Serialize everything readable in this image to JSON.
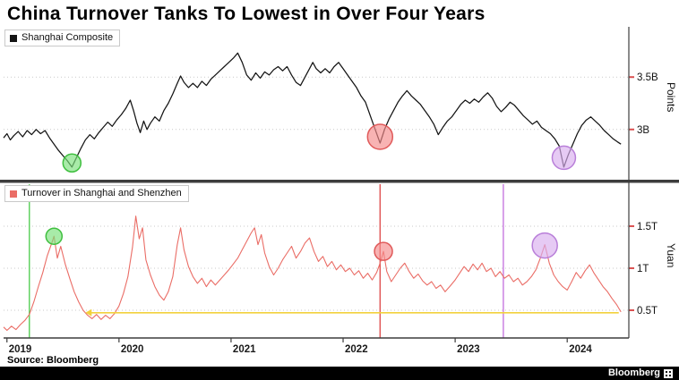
{
  "title": "China Turnover Tanks To Lowest in Over Four Years",
  "footer": {
    "source": "Source: Bloomberg",
    "brand": "Bloomberg"
  },
  "colors": {
    "grid": "#c9c9c9",
    "axis": "#3d3d3d",
    "divider": "#3d3d3d",
    "tick": "#d94f4f",
    "green": "#3fbf3f",
    "red": "#e05252",
    "purple": "#b97fd9",
    "yellow": "#f2d13d"
  },
  "x_axis": {
    "xlim": [
      2018.97,
      2024.55
    ],
    "ticks": [
      {
        "value": 2019,
        "label": "2019"
      },
      {
        "value": 2020,
        "label": "2020"
      },
      {
        "value": 2021,
        "label": "2021"
      },
      {
        "value": 2022,
        "label": "2022"
      },
      {
        "value": 2023,
        "label": "2023"
      },
      {
        "value": 2024,
        "label": "2024"
      }
    ]
  },
  "chart_data": [
    {
      "type": "line",
      "name": "shanghai-composite",
      "legend": "Shanghai Composite",
      "line_color": "#141414",
      "ylabel": "Points",
      "ylim": [
        2.52,
        3.98
      ],
      "yticks": [
        {
          "value": 3.5,
          "label": "3.5B"
        },
        {
          "value": 3.0,
          "label": "3B"
        }
      ],
      "markers": [
        {
          "name": "green-event-marker-top",
          "x": 2019.58,
          "y": 2.68,
          "r": 10,
          "fill": "#79e079",
          "stroke": "#3fbf3f"
        },
        {
          "name": "red-event-marker-top",
          "x": 2022.33,
          "y": 2.93,
          "r": 14,
          "fill": "#f58a8a",
          "stroke": "#e05a5a"
        },
        {
          "name": "purple-event-marker-top",
          "x": 2023.97,
          "y": 2.73,
          "r": 13,
          "fill": "#d9aeee",
          "stroke": "#b97fd9"
        }
      ],
      "points": [
        [
          2018.97,
          2.92
        ],
        [
          2019.0,
          2.96
        ],
        [
          2019.03,
          2.9
        ],
        [
          2019.06,
          2.94
        ],
        [
          2019.1,
          2.98
        ],
        [
          2019.14,
          2.93
        ],
        [
          2019.18,
          2.99
        ],
        [
          2019.22,
          2.95
        ],
        [
          2019.26,
          3.0
        ],
        [
          2019.3,
          2.96
        ],
        [
          2019.34,
          2.99
        ],
        [
          2019.38,
          2.92
        ],
        [
          2019.42,
          2.86
        ],
        [
          2019.46,
          2.8
        ],
        [
          2019.5,
          2.75
        ],
        [
          2019.54,
          2.7
        ],
        [
          2019.58,
          2.64
        ],
        [
          2019.62,
          2.73
        ],
        [
          2019.66,
          2.82
        ],
        [
          2019.7,
          2.9
        ],
        [
          2019.74,
          2.95
        ],
        [
          2019.78,
          2.91
        ],
        [
          2019.82,
          2.97
        ],
        [
          2019.86,
          3.02
        ],
        [
          2019.9,
          3.07
        ],
        [
          2019.94,
          3.03
        ],
        [
          2019.98,
          3.09
        ],
        [
          2020.02,
          3.14
        ],
        [
          2020.06,
          3.2
        ],
        [
          2020.1,
          3.28
        ],
        [
          2020.13,
          3.18
        ],
        [
          2020.16,
          3.06
        ],
        [
          2020.19,
          2.97
        ],
        [
          2020.22,
          3.08
        ],
        [
          2020.25,
          3.0
        ],
        [
          2020.28,
          3.06
        ],
        [
          2020.32,
          3.12
        ],
        [
          2020.36,
          3.08
        ],
        [
          2020.4,
          3.18
        ],
        [
          2020.44,
          3.25
        ],
        [
          2020.48,
          3.34
        ],
        [
          2020.52,
          3.44
        ],
        [
          2020.55,
          3.51
        ],
        [
          2020.58,
          3.45
        ],
        [
          2020.62,
          3.4
        ],
        [
          2020.66,
          3.44
        ],
        [
          2020.7,
          3.4
        ],
        [
          2020.74,
          3.46
        ],
        [
          2020.78,
          3.42
        ],
        [
          2020.82,
          3.48
        ],
        [
          2020.86,
          3.52
        ],
        [
          2020.9,
          3.56
        ],
        [
          2020.94,
          3.6
        ],
        [
          2020.98,
          3.64
        ],
        [
          2021.02,
          3.68
        ],
        [
          2021.06,
          3.73
        ],
        [
          2021.1,
          3.64
        ],
        [
          2021.14,
          3.52
        ],
        [
          2021.18,
          3.47
        ],
        [
          2021.22,
          3.54
        ],
        [
          2021.26,
          3.49
        ],
        [
          2021.3,
          3.55
        ],
        [
          2021.34,
          3.52
        ],
        [
          2021.38,
          3.57
        ],
        [
          2021.42,
          3.6
        ],
        [
          2021.46,
          3.56
        ],
        [
          2021.5,
          3.6
        ],
        [
          2021.54,
          3.52
        ],
        [
          2021.58,
          3.45
        ],
        [
          2021.62,
          3.42
        ],
        [
          2021.66,
          3.5
        ],
        [
          2021.7,
          3.58
        ],
        [
          2021.73,
          3.64
        ],
        [
          2021.76,
          3.58
        ],
        [
          2021.8,
          3.54
        ],
        [
          2021.84,
          3.58
        ],
        [
          2021.88,
          3.54
        ],
        [
          2021.92,
          3.6
        ],
        [
          2021.96,
          3.64
        ],
        [
          2022.0,
          3.58
        ],
        [
          2022.04,
          3.52
        ],
        [
          2022.08,
          3.46
        ],
        [
          2022.12,
          3.4
        ],
        [
          2022.16,
          3.32
        ],
        [
          2022.2,
          3.26
        ],
        [
          2022.24,
          3.14
        ],
        [
          2022.28,
          3.02
        ],
        [
          2022.33,
          2.87
        ],
        [
          2022.37,
          3.0
        ],
        [
          2022.41,
          3.1
        ],
        [
          2022.45,
          3.18
        ],
        [
          2022.49,
          3.26
        ],
        [
          2022.53,
          3.32
        ],
        [
          2022.57,
          3.37
        ],
        [
          2022.61,
          3.32
        ],
        [
          2022.65,
          3.28
        ],
        [
          2022.69,
          3.24
        ],
        [
          2022.73,
          3.18
        ],
        [
          2022.77,
          3.12
        ],
        [
          2022.81,
          3.05
        ],
        [
          2022.85,
          2.95
        ],
        [
          2022.89,
          3.02
        ],
        [
          2022.93,
          3.08
        ],
        [
          2022.97,
          3.12
        ],
        [
          2023.01,
          3.18
        ],
        [
          2023.05,
          3.24
        ],
        [
          2023.09,
          3.28
        ],
        [
          2023.13,
          3.25
        ],
        [
          2023.17,
          3.29
        ],
        [
          2023.21,
          3.26
        ],
        [
          2023.25,
          3.31
        ],
        [
          2023.29,
          3.35
        ],
        [
          2023.33,
          3.3
        ],
        [
          2023.37,
          3.22
        ],
        [
          2023.41,
          3.17
        ],
        [
          2023.45,
          3.21
        ],
        [
          2023.49,
          3.26
        ],
        [
          2023.53,
          3.23
        ],
        [
          2023.57,
          3.18
        ],
        [
          2023.61,
          3.13
        ],
        [
          2023.65,
          3.09
        ],
        [
          2023.69,
          3.05
        ],
        [
          2023.73,
          3.08
        ],
        [
          2023.77,
          3.02
        ],
        [
          2023.81,
          2.99
        ],
        [
          2023.85,
          2.96
        ],
        [
          2023.89,
          2.91
        ],
        [
          2023.93,
          2.84
        ],
        [
          2023.97,
          2.64
        ],
        [
          2024.01,
          2.76
        ],
        [
          2024.05,
          2.86
        ],
        [
          2024.09,
          2.96
        ],
        [
          2024.13,
          3.04
        ],
        [
          2024.17,
          3.09
        ],
        [
          2024.21,
          3.12
        ],
        [
          2024.25,
          3.08
        ],
        [
          2024.29,
          3.04
        ],
        [
          2024.33,
          2.99
        ],
        [
          2024.37,
          2.95
        ],
        [
          2024.41,
          2.91
        ],
        [
          2024.45,
          2.88
        ],
        [
          2024.48,
          2.86
        ]
      ]
    },
    {
      "type": "line",
      "name": "turnover-shanghai-shenzhen",
      "legend": "Turnover in Shanghai and Shenzhen",
      "line_color": "#ea6d66",
      "ylabel": "Yuan",
      "ylim": [
        0.17,
        2.01
      ],
      "yticks": [
        {
          "value": 1.5,
          "label": "1.5T"
        },
        {
          "value": 1.0,
          "label": "1T"
        },
        {
          "value": 0.5,
          "label": "0.5T"
        }
      ],
      "vlines": [
        {
          "name": "green-event-line",
          "x": 2019.2,
          "color": "#57cf57"
        },
        {
          "name": "red-event-line",
          "x": 2022.33,
          "color": "#e05252"
        },
        {
          "name": "purple-event-line",
          "x": 2023.43,
          "color": "#c779e0"
        }
      ],
      "arrow": {
        "y": 0.47,
        "x_from": 2024.46,
        "x_to": 2019.7,
        "color": "#f2d13d"
      },
      "markers": [
        {
          "name": "green-event-marker-bottom",
          "x": 2019.42,
          "y": 1.38,
          "r": 9,
          "fill": "#79e079",
          "stroke": "#3fbf3f"
        },
        {
          "name": "red-event-marker-bottom",
          "x": 2022.36,
          "y": 1.2,
          "r": 10,
          "fill": "#f58a8a",
          "stroke": "#e05a5a"
        },
        {
          "name": "purple-event-marker-bottom",
          "x": 2023.8,
          "y": 1.27,
          "r": 14,
          "fill": "#d9aeee",
          "stroke": "#b97fd9"
        }
      ],
      "points": [
        [
          2018.97,
          0.3
        ],
        [
          2019.0,
          0.26
        ],
        [
          2019.04,
          0.31
        ],
        [
          2019.08,
          0.27
        ],
        [
          2019.12,
          0.33
        ],
        [
          2019.16,
          0.38
        ],
        [
          2019.2,
          0.45
        ],
        [
          2019.24,
          0.6
        ],
        [
          2019.28,
          0.78
        ],
        [
          2019.32,
          0.95
        ],
        [
          2019.36,
          1.15
        ],
        [
          2019.4,
          1.3
        ],
        [
          2019.42,
          1.38
        ],
        [
          2019.45,
          1.12
        ],
        [
          2019.48,
          1.26
        ],
        [
          2019.52,
          1.05
        ],
        [
          2019.56,
          0.88
        ],
        [
          2019.6,
          0.72
        ],
        [
          2019.64,
          0.6
        ],
        [
          2019.68,
          0.5
        ],
        [
          2019.72,
          0.44
        ],
        [
          2019.76,
          0.4
        ],
        [
          2019.8,
          0.45
        ],
        [
          2019.84,
          0.39
        ],
        [
          2019.88,
          0.44
        ],
        [
          2019.92,
          0.4
        ],
        [
          2019.96,
          0.46
        ],
        [
          2020.0,
          0.55
        ],
        [
          2020.04,
          0.7
        ],
        [
          2020.08,
          0.9
        ],
        [
          2020.12,
          1.25
        ],
        [
          2020.15,
          1.62
        ],
        [
          2020.18,
          1.35
        ],
        [
          2020.21,
          1.48
        ],
        [
          2020.24,
          1.1
        ],
        [
          2020.28,
          0.92
        ],
        [
          2020.32,
          0.78
        ],
        [
          2020.36,
          0.68
        ],
        [
          2020.4,
          0.62
        ],
        [
          2020.44,
          0.72
        ],
        [
          2020.48,
          0.9
        ],
        [
          2020.52,
          1.28
        ],
        [
          2020.55,
          1.48
        ],
        [
          2020.58,
          1.22
        ],
        [
          2020.62,
          1.02
        ],
        [
          2020.66,
          0.9
        ],
        [
          2020.7,
          0.82
        ],
        [
          2020.74,
          0.88
        ],
        [
          2020.78,
          0.78
        ],
        [
          2020.82,
          0.86
        ],
        [
          2020.86,
          0.8
        ],
        [
          2020.9,
          0.86
        ],
        [
          2020.94,
          0.92
        ],
        [
          2020.98,
          0.98
        ],
        [
          2021.02,
          1.05
        ],
        [
          2021.06,
          1.12
        ],
        [
          2021.1,
          1.22
        ],
        [
          2021.14,
          1.32
        ],
        [
          2021.18,
          1.42
        ],
        [
          2021.21,
          1.48
        ],
        [
          2021.24,
          1.28
        ],
        [
          2021.27,
          1.4
        ],
        [
          2021.3,
          1.18
        ],
        [
          2021.34,
          1.02
        ],
        [
          2021.38,
          0.92
        ],
        [
          2021.42,
          1.0
        ],
        [
          2021.46,
          1.1
        ],
        [
          2021.5,
          1.18
        ],
        [
          2021.54,
          1.26
        ],
        [
          2021.58,
          1.12
        ],
        [
          2021.62,
          1.2
        ],
        [
          2021.66,
          1.3
        ],
        [
          2021.7,
          1.36
        ],
        [
          2021.74,
          1.2
        ],
        [
          2021.78,
          1.08
        ],
        [
          2021.82,
          1.14
        ],
        [
          2021.86,
          1.02
        ],
        [
          2021.9,
          1.08
        ],
        [
          2021.94,
          0.98
        ],
        [
          2021.98,
          1.04
        ],
        [
          2022.02,
          0.96
        ],
        [
          2022.06,
          1.0
        ],
        [
          2022.1,
          0.92
        ],
        [
          2022.14,
          0.97
        ],
        [
          2022.18,
          0.88
        ],
        [
          2022.22,
          0.94
        ],
        [
          2022.26,
          0.86
        ],
        [
          2022.3,
          0.95
        ],
        [
          2022.33,
          1.06
        ],
        [
          2022.36,
          1.2
        ],
        [
          2022.39,
          0.96
        ],
        [
          2022.43,
          0.84
        ],
        [
          2022.47,
          0.92
        ],
        [
          2022.51,
          1.0
        ],
        [
          2022.55,
          1.06
        ],
        [
          2022.59,
          0.96
        ],
        [
          2022.63,
          0.88
        ],
        [
          2022.67,
          0.93
        ],
        [
          2022.71,
          0.85
        ],
        [
          2022.75,
          0.8
        ],
        [
          2022.79,
          0.84
        ],
        [
          2022.83,
          0.76
        ],
        [
          2022.87,
          0.8
        ],
        [
          2022.91,
          0.72
        ],
        [
          2022.95,
          0.78
        ],
        [
          2023.0,
          0.86
        ],
        [
          2023.04,
          0.94
        ],
        [
          2023.08,
          1.02
        ],
        [
          2023.12,
          0.96
        ],
        [
          2023.16,
          1.05
        ],
        [
          2023.2,
          0.98
        ],
        [
          2023.24,
          1.06
        ],
        [
          2023.28,
          0.96
        ],
        [
          2023.32,
          1.0
        ],
        [
          2023.36,
          0.9
        ],
        [
          2023.4,
          0.96
        ],
        [
          2023.44,
          0.88
        ],
        [
          2023.48,
          0.92
        ],
        [
          2023.52,
          0.84
        ],
        [
          2023.56,
          0.88
        ],
        [
          2023.6,
          0.8
        ],
        [
          2023.64,
          0.84
        ],
        [
          2023.68,
          0.9
        ],
        [
          2023.72,
          0.98
        ],
        [
          2023.76,
          1.12
        ],
        [
          2023.8,
          1.28
        ],
        [
          2023.84,
          1.06
        ],
        [
          2023.88,
          0.92
        ],
        [
          2023.92,
          0.84
        ],
        [
          2023.96,
          0.78
        ],
        [
          2024.0,
          0.74
        ],
        [
          2024.04,
          0.84
        ],
        [
          2024.08,
          0.95
        ],
        [
          2024.12,
          0.88
        ],
        [
          2024.16,
          0.97
        ],
        [
          2024.2,
          1.04
        ],
        [
          2024.24,
          0.94
        ],
        [
          2024.28,
          0.86
        ],
        [
          2024.32,
          0.78
        ],
        [
          2024.36,
          0.72
        ],
        [
          2024.4,
          0.64
        ],
        [
          2024.44,
          0.57
        ],
        [
          2024.48,
          0.48
        ]
      ]
    }
  ]
}
